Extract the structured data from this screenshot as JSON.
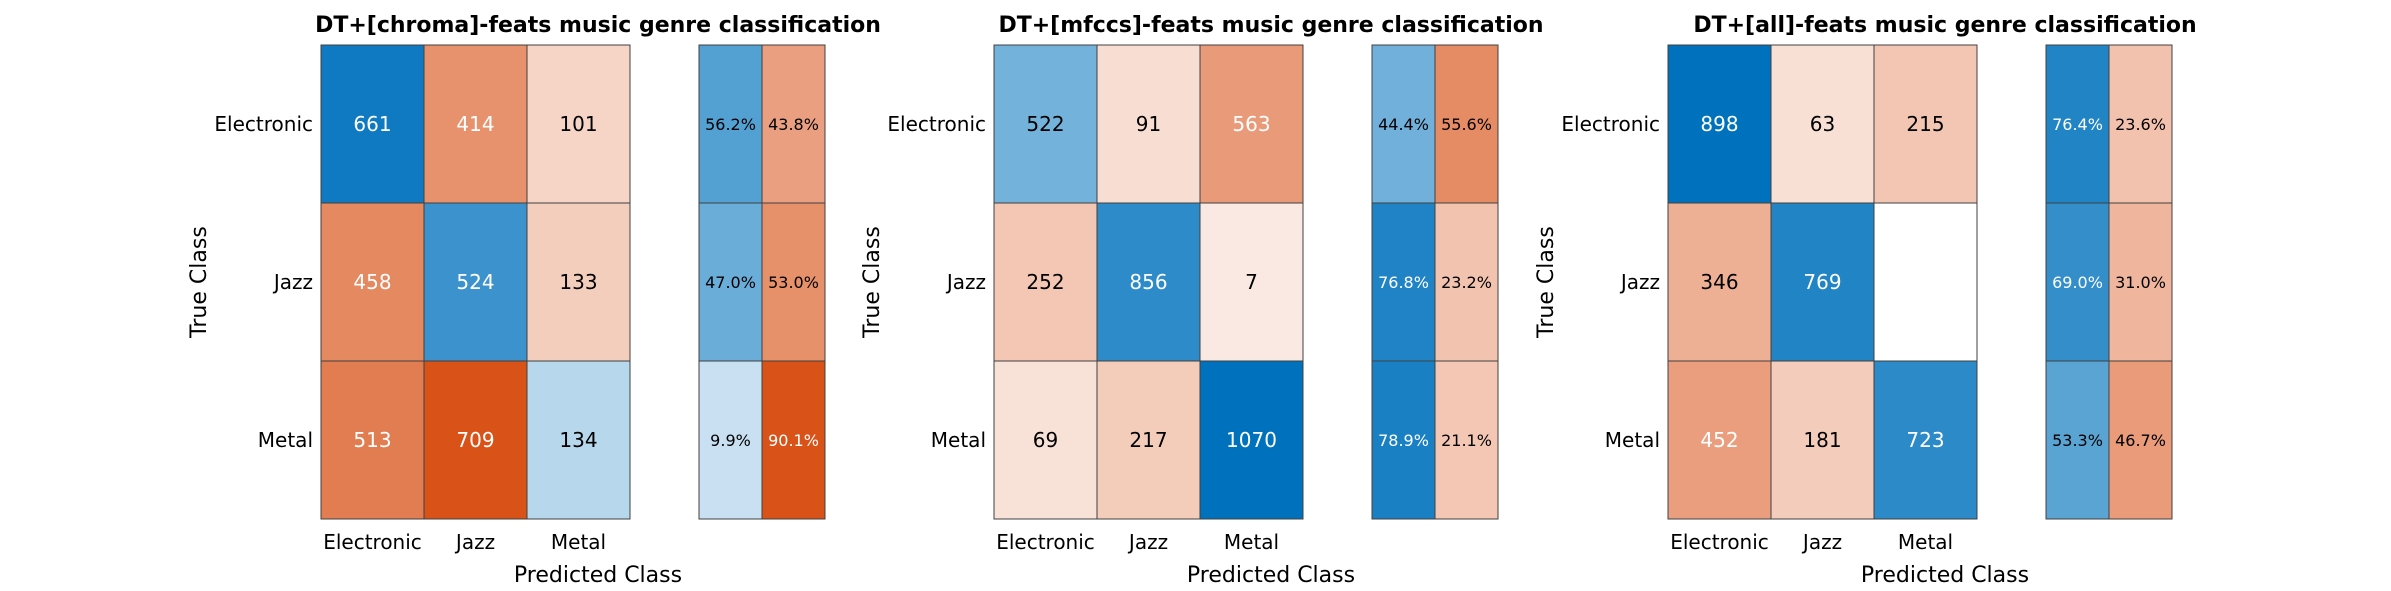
{
  "chart_data": [
    {
      "type": "heatmap",
      "title": "DT+[chroma]-feats music genre classification",
      "xlabel": "Predicted Class",
      "ylabel": "True Class",
      "row_labels": [
        "Electronic",
        "Jazz",
        "Metal"
      ],
      "col_labels": [
        "Electronic",
        "Jazz",
        "Metal"
      ],
      "matrix": [
        [
          661,
          414,
          101
        ],
        [
          458,
          524,
          133
        ],
        [
          513,
          709,
          134
        ]
      ],
      "row_summary": [
        [
          "56.2%",
          "43.8%"
        ],
        [
          "47.0%",
          "53.0%"
        ],
        [
          "9.9%",
          "90.1%"
        ]
      ]
    },
    {
      "type": "heatmap",
      "title": "DT+[mfccs]-feats music genre classification",
      "xlabel": "Predicted Class",
      "ylabel": "True Class",
      "row_labels": [
        "Electronic",
        "Jazz",
        "Metal"
      ],
      "col_labels": [
        "Electronic",
        "Jazz",
        "Metal"
      ],
      "matrix": [
        [
          522,
          91,
          563
        ],
        [
          252,
          856,
          7
        ],
        [
          69,
          217,
          1070
        ]
      ],
      "row_summary": [
        [
          "44.4%",
          "55.6%"
        ],
        [
          "76.8%",
          "23.2%"
        ],
        [
          "78.9%",
          "21.1%"
        ]
      ]
    },
    {
      "type": "heatmap",
      "title": "DT+[all]-feats music genre classification",
      "xlabel": "Predicted Class",
      "ylabel": "True Class",
      "row_labels": [
        "Electronic",
        "Jazz",
        "Metal"
      ],
      "col_labels": [
        "Electronic",
        "Jazz",
        "Metal"
      ],
      "matrix": [
        [
          898,
          63,
          215
        ],
        [
          346,
          769,
          null
        ],
        [
          452,
          181,
          723
        ]
      ],
      "row_summary": [
        [
          "76.4%",
          "23.6%"
        ],
        [
          "69.0%",
          "31.0%"
        ],
        [
          "53.3%",
          "46.7%"
        ]
      ]
    }
  ],
  "colors": {
    "correct": "#0072bd",
    "incorrect": "#d95319",
    "cell_border": "#404040",
    "text_dark": "#000000",
    "text_light": "#ffffff"
  }
}
